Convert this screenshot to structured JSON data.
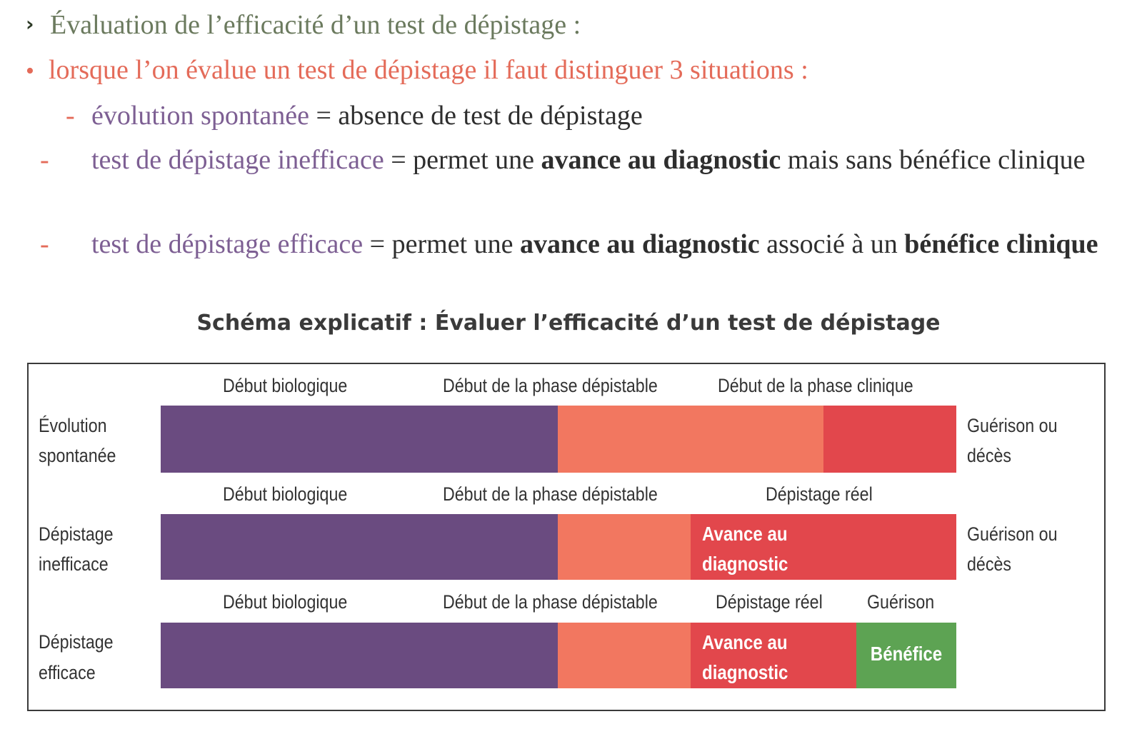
{
  "heading": {
    "chevron": "›",
    "text": "Évaluation de l’efficacité d’un test de dépistage :"
  },
  "intro": {
    "bullet": "•",
    "text": "lorsque l’on évalue un test de dépistage il faut distinguer 3 situations :"
  },
  "items": [
    {
      "dash": "-",
      "term": "évolution spontanée",
      "eq": " = ",
      "parts": [
        "absence de test de dépistage"
      ]
    },
    {
      "dash": "-",
      "term": "test de dépistage inefficace",
      "eq": " = ",
      "p1": "permet une ",
      "b1": "avance au diagnostic",
      "p2": " mais sans bénéfice clinique"
    },
    {
      "dash": "-",
      "term": "test de dépistage efficace",
      "eq": " = ",
      "p1": "permet une ",
      "b1": "avance au diagnostic",
      "p2": " associé à un ",
      "b2": "bénéfice clinique"
    }
  ],
  "schema": {
    "title": "Schéma explicatif : Évaluer l’efficacité d’un test de dépistage",
    "rows": [
      {
        "label_line1": "Évolution",
        "label_line2": "spontanée",
        "top_labels": [
          "Début biologique",
          "Début de la phase dépistable",
          "Début de la phase clinique"
        ],
        "end_line1": "Guérison ou",
        "end_line2": "décès",
        "segments": [
          {
            "color": "purple"
          },
          {
            "color": "salmon"
          },
          {
            "color": "crimson"
          }
        ]
      },
      {
        "label_line1": "Dépistage",
        "label_line2": "inefficace",
        "top_labels": [
          "Début biologique",
          "Début de la phase dépistable",
          "Dépistage réel"
        ],
        "end_line1": "Guérison ou",
        "end_line2": "décès",
        "segments": [
          {
            "color": "purple"
          },
          {
            "color": "salmon"
          },
          {
            "color": "crimson",
            "text1": "Avance au",
            "text2": "diagnostic"
          }
        ]
      },
      {
        "label_line1": "Dépistage",
        "label_line2": "efficace",
        "top_labels": [
          "Début biologique",
          "Début de la phase dépistable",
          "Dépistage réel",
          "Guérison"
        ],
        "segments": [
          {
            "color": "purple"
          },
          {
            "color": "salmon"
          },
          {
            "color": "crimson",
            "text1": "Avance au",
            "text2": "diagnostic"
          },
          {
            "color": "green",
            "text1": "Bénéfice"
          }
        ]
      }
    ],
    "colors": {
      "purple": "#6a4b80",
      "salmon": "#f27760",
      "crimson": "#e2474c",
      "green": "#5da353"
    }
  }
}
